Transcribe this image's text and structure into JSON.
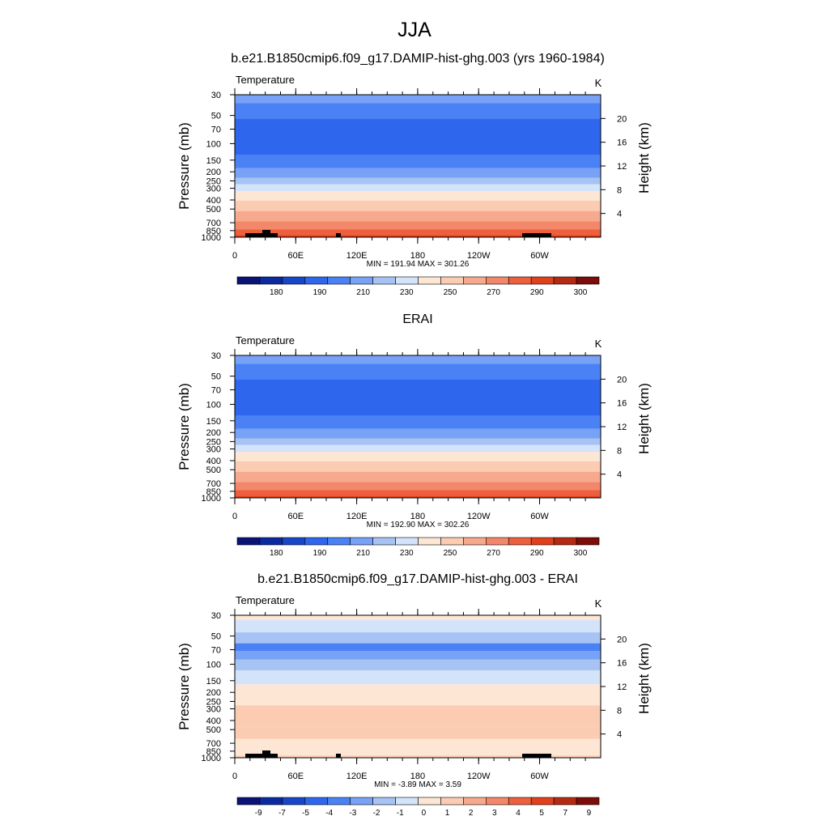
{
  "figure": {
    "title": "JJA"
  },
  "chart_data": [
    {
      "type": "heatmap",
      "title": "b.e21.B1850cmip6.f09_g17.DAMIP-hist-ghg.003 (yrs 1960-1984)",
      "left_label": "Temperature",
      "unit_label": "K",
      "ylabel": "Pressure (mb)",
      "ylabel_right": "Height (km)",
      "x_ticks": [
        "0",
        "60E",
        "120E",
        "180",
        "120W",
        "60W"
      ],
      "y_ticks": [
        "30",
        "50",
        "70",
        "100",
        "150",
        "200",
        "250",
        "300",
        "400",
        "500",
        "700",
        "850",
        "1000"
      ],
      "y_ticks_right": [
        "20",
        "16",
        "12",
        "8",
        "4"
      ],
      "stats_text": "MIN = 191.94  MAX = 301.26",
      "min": 191.94,
      "max": 301.26,
      "colorbar_labels": [
        "180",
        "190",
        "210",
        "230",
        "250",
        "270",
        "290",
        "300"
      ],
      "colorbar_colors": [
        "#0a1478",
        "#0c2aa0",
        "#1746c8",
        "#2f66ee",
        "#4a82f6",
        "#77a2f5",
        "#a6c3f4",
        "#d2e3fa",
        "#fde6d4",
        "#fbcbb2",
        "#f7a98d",
        "#f3876a",
        "#ee5f3e",
        "#e0401c",
        "#b42a12",
        "#7e0c08"
      ],
      "profile": [
        {
          "p": 30,
          "color": "#77a2f5"
        },
        {
          "p": 45,
          "color": "#4a82f6"
        },
        {
          "p": 65,
          "color": "#2f66ee"
        },
        {
          "p": 110,
          "color": "#2f66ee"
        },
        {
          "p": 160,
          "color": "#4a82f6"
        },
        {
          "p": 210,
          "color": "#77a2f5"
        },
        {
          "p": 255,
          "color": "#a6c3f4"
        },
        {
          "p": 290,
          "color": "#d2e3fa"
        },
        {
          "p": 360,
          "color": "#fde6d4"
        },
        {
          "p": 460,
          "color": "#fbcbb2"
        },
        {
          "p": 600,
          "color": "#f7a98d"
        },
        {
          "p": 760,
          "color": "#f3876a"
        },
        {
          "p": 900,
          "color": "#ee5f3e"
        },
        {
          "p": 1000,
          "color": "#e0401c"
        }
      ],
      "topography": true
    },
    {
      "type": "heatmap",
      "title": "ERAI",
      "left_label": "Temperature",
      "unit_label": "K",
      "ylabel": "Pressure (mb)",
      "ylabel_right": "Height (km)",
      "x_ticks": [
        "0",
        "60E",
        "120E",
        "180",
        "120W",
        "60W"
      ],
      "y_ticks": [
        "30",
        "50",
        "70",
        "100",
        "150",
        "200",
        "250",
        "300",
        "400",
        "500",
        "700",
        "850",
        "1000"
      ],
      "y_ticks_right": [
        "20",
        "16",
        "12",
        "8",
        "4"
      ],
      "stats_text": "MIN = 192.90  MAX = 302.26",
      "min": 192.9,
      "max": 302.26,
      "colorbar_labels": [
        "180",
        "190",
        "210",
        "230",
        "250",
        "270",
        "290",
        "300"
      ],
      "colorbar_colors": [
        "#0a1478",
        "#0c2aa0",
        "#1746c8",
        "#2f66ee",
        "#4a82f6",
        "#77a2f5",
        "#a6c3f4",
        "#d2e3fa",
        "#fde6d4",
        "#fbcbb2",
        "#f7a98d",
        "#f3876a",
        "#ee5f3e",
        "#e0401c",
        "#b42a12",
        "#7e0c08"
      ],
      "profile": [
        {
          "p": 30,
          "color": "#77a2f5"
        },
        {
          "p": 45,
          "color": "#4a82f6"
        },
        {
          "p": 65,
          "color": "#2f66ee"
        },
        {
          "p": 110,
          "color": "#2f66ee"
        },
        {
          "p": 160,
          "color": "#4a82f6"
        },
        {
          "p": 210,
          "color": "#77a2f5"
        },
        {
          "p": 255,
          "color": "#a6c3f4"
        },
        {
          "p": 290,
          "color": "#d2e3fa"
        },
        {
          "p": 360,
          "color": "#fde6d4"
        },
        {
          "p": 460,
          "color": "#fbcbb2"
        },
        {
          "p": 600,
          "color": "#f7a98d"
        },
        {
          "p": 760,
          "color": "#f3876a"
        },
        {
          "p": 900,
          "color": "#ee5f3e"
        },
        {
          "p": 1000,
          "color": "#e0401c"
        }
      ],
      "topography": false
    },
    {
      "type": "heatmap",
      "title": "b.e21.B1850cmip6.f09_g17.DAMIP-hist-ghg.003 - ERAI",
      "left_label": "Temperature",
      "unit_label": "K",
      "ylabel": "Pressure (mb)",
      "ylabel_right": "Height (km)",
      "x_ticks": [
        "0",
        "60E",
        "120E",
        "180",
        "120W",
        "60W"
      ],
      "y_ticks": [
        "30",
        "50",
        "70",
        "100",
        "150",
        "200",
        "250",
        "300",
        "400",
        "500",
        "700",
        "850",
        "1000"
      ],
      "y_ticks_right": [
        "20",
        "16",
        "12",
        "8",
        "4"
      ],
      "stats_text": "MIN =  -3.89  MAX =   3.59",
      "min": -3.89,
      "max": 3.59,
      "colorbar_labels": [
        "-9",
        "-7",
        "-5",
        "-4",
        "-3",
        "-2",
        "-1",
        "0",
        "1",
        "2",
        "3",
        "4",
        "5",
        "7",
        "9"
      ],
      "colorbar_colors": [
        "#0a1478",
        "#0c2aa0",
        "#1746c8",
        "#2f66ee",
        "#4a82f6",
        "#77a2f5",
        "#a6c3f4",
        "#d2e3fa",
        "#fde6d4",
        "#fbcbb2",
        "#f7a98d",
        "#f3876a",
        "#ee5f3e",
        "#e0401c",
        "#b42a12",
        "#7e0c08"
      ],
      "profile": [
        {
          "p": 30,
          "color": "#fde6d4"
        },
        {
          "p": 38,
          "color": "#d2e3fa"
        },
        {
          "p": 55,
          "color": "#a6c3f4"
        },
        {
          "p": 65,
          "color": "#4a82f6"
        },
        {
          "p": 80,
          "color": "#77a2f5"
        },
        {
          "p": 100,
          "color": "#a6c3f4"
        },
        {
          "p": 135,
          "color": "#d2e3fa"
        },
        {
          "p": 200,
          "color": "#fde6d4"
        },
        {
          "p": 380,
          "color": "#fbcbb2"
        },
        {
          "p": 560,
          "color": "#fbcbb2"
        },
        {
          "p": 700,
          "color": "#fde6d4"
        },
        {
          "p": 900,
          "color": "#fde6d4"
        },
        {
          "p": 1000,
          "color": "#fbcbb2"
        }
      ],
      "topography": true
    }
  ]
}
